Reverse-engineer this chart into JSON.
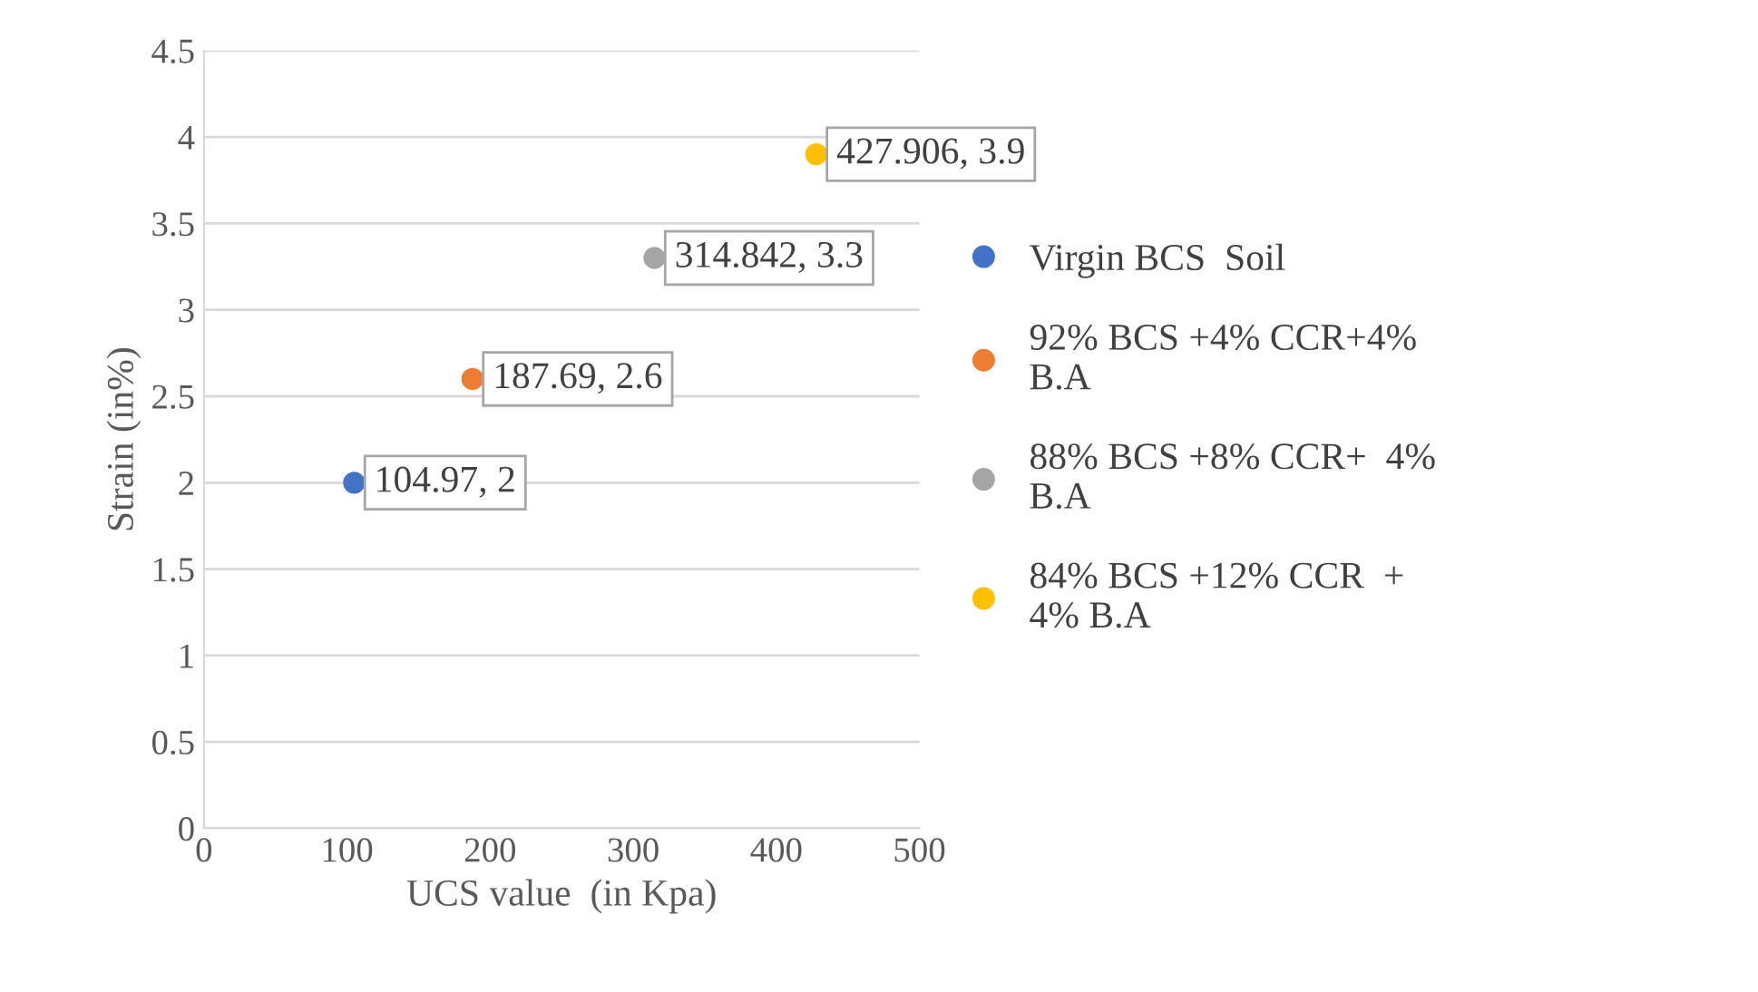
{
  "chart_data": {
    "type": "scatter",
    "xlabel": "UCS value  (in Kpa)",
    "ylabel": "Strain (in%)",
    "xlim": [
      0,
      500
    ],
    "xticks": [
      0,
      100,
      200,
      300,
      400,
      500
    ],
    "ylim": [
      0,
      4.5
    ],
    "yticks": [
      0,
      0.5,
      1,
      1.5,
      2,
      2.5,
      3,
      3.5,
      4,
      4.5
    ],
    "grid": "y",
    "legend": "right",
    "marker": "circle",
    "series": [
      {
        "name": "Virgin BCS  Soil",
        "color": "#4472c4",
        "x": [
          104.97
        ],
        "values": [
          2
        ],
        "value_labels": [
          "104.97, 2"
        ]
      },
      {
        "name": "92% BCS +4% CCR+4% B.A",
        "color": "#ed7d31",
        "x": [
          187.69
        ],
        "values": [
          2.6
        ],
        "value_labels": [
          "187.69, 2.6"
        ]
      },
      {
        "name": "88% BCS +8% CCR+  4% B.A",
        "color": "#a5a5a5",
        "x": [
          314.842
        ],
        "values": [
          3.3
        ],
        "value_labels": [
          "314.842, 3.3"
        ]
      },
      {
        "name": "84% BCS +12% CCR  + 4% B.A",
        "color": "#ffc000",
        "x": [
          427.906
        ],
        "values": [
          3.9
        ],
        "value_labels": [
          "427.906, 3.9"
        ]
      }
    ]
  }
}
